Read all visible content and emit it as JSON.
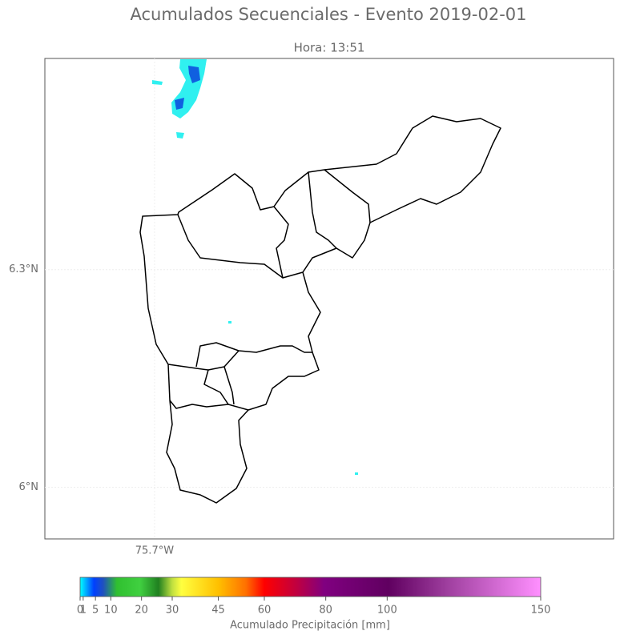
{
  "title": "Acumulados Secuenciales - Evento 2019-02-01",
  "subtitle": "Hora: 13:51",
  "map": {
    "xlim": [
      -75.851,
      -75.068
    ],
    "ylim": [
      5.929,
      6.591
    ],
    "xticks": [
      {
        "value": -75.7,
        "label": "75.7°W"
      }
    ],
    "yticks": [
      {
        "value": 6.3,
        "label": "6.3°N"
      },
      {
        "value": 6.0,
        "label": "6°N"
      }
    ]
  },
  "colorbar": {
    "label": "Acumulado Precipitación [mm]",
    "lim": [
      0,
      150
    ],
    "ticks": [
      0,
      1,
      5,
      10,
      20,
      30,
      45,
      60,
      80,
      100,
      150
    ]
  }
}
